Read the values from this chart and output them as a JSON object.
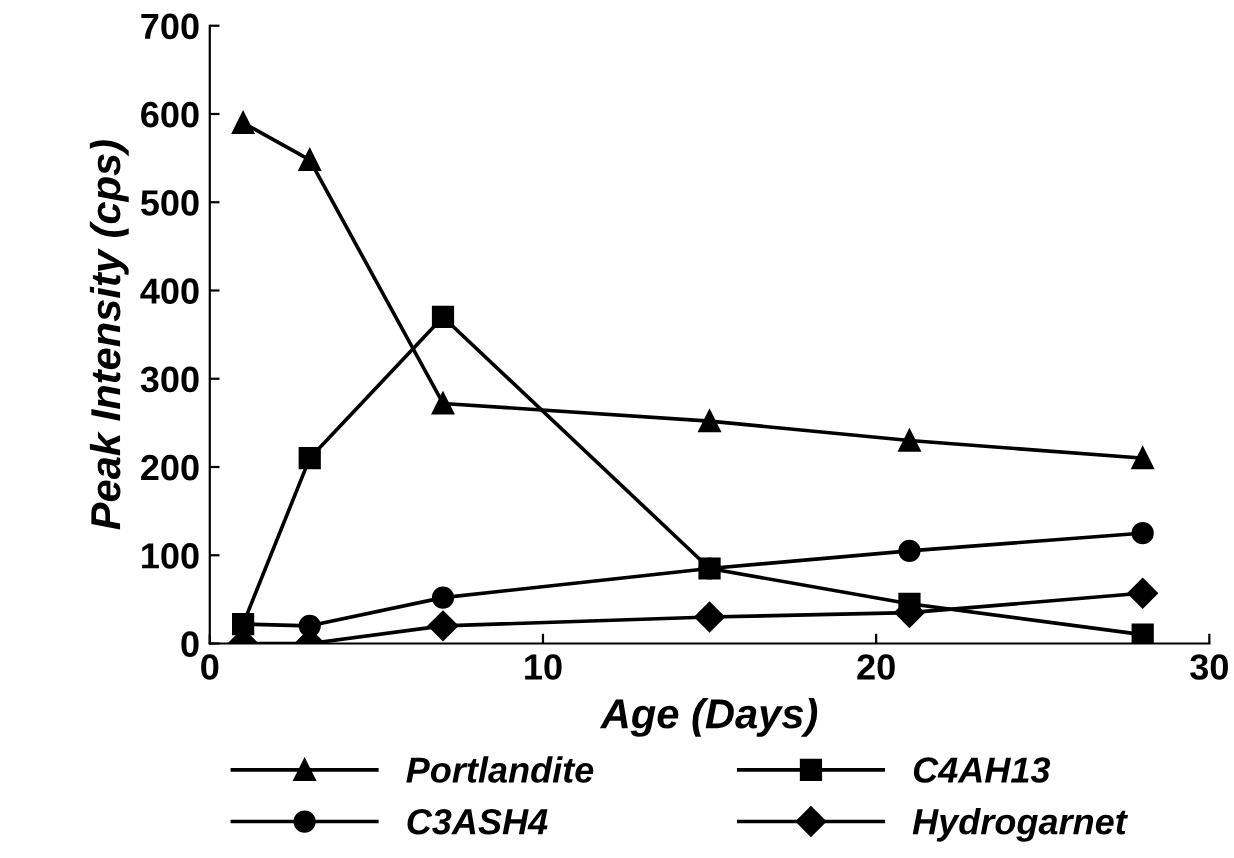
{
  "chart_data": {
    "type": "line",
    "xlabel": "Age (Days)",
    "ylabel": "Peak Intensity (cps)",
    "x": [
      1,
      3,
      7,
      15,
      21,
      28
    ],
    "series": [
      {
        "name": "Portlandite",
        "color": "#000000",
        "marker": "triangle",
        "values": [
          590,
          548,
          272,
          252,
          230,
          210
        ]
      },
      {
        "name": "C4AH13",
        "color": "#000000",
        "marker": "square",
        "values": [
          22,
          210,
          370,
          85,
          45,
          10
        ]
      },
      {
        "name": "C3ASH4",
        "color": "#000000",
        "marker": "circle",
        "values": [
          22,
          20,
          52,
          85,
          105,
          125
        ]
      },
      {
        "name": "Hydrogarnet",
        "color": "#000000",
        "marker": "diamond",
        "values": [
          0,
          0,
          20,
          30,
          35,
          57
        ]
      }
    ],
    "xlim": [
      0,
      30
    ],
    "xticks": [
      0,
      10,
      20,
      30
    ],
    "ylim": [
      0,
      700
    ],
    "yticks": [
      0,
      100,
      200,
      300,
      400,
      500,
      600,
      700
    ],
    "grid": false,
    "legend": "bottom",
    "line_style": "solid"
  }
}
